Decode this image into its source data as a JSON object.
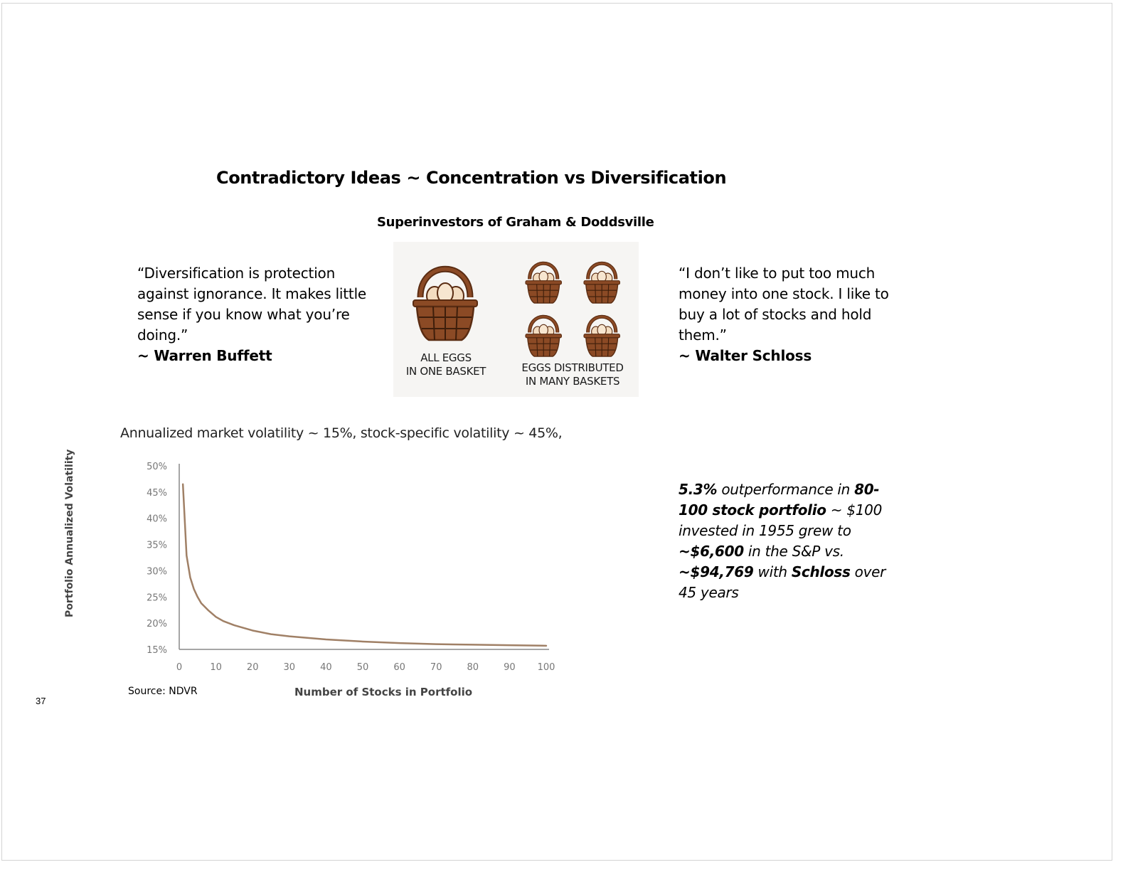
{
  "slide": {
    "title": "Contradictory Ideas ~ Concentration vs Diversification",
    "subtitle": "Superinvestors of Graham & Doddsville",
    "page_number": "37"
  },
  "quotes": {
    "left": {
      "text": "“Diversification is protection against ignorance. It makes little sense if you know what you’re doing.”",
      "author": "~ Warren Buffett"
    },
    "right": {
      "text": "“I don’t like to put too much money into one stock. I like to buy a lot of stocks and hold them.”",
      "author": "~ Walter Schloss"
    }
  },
  "illustration": {
    "left_label_line1": "ALL EGGS",
    "left_label_line2": "IN ONE BASKET",
    "right_label_line1": "EGGS DISTRIBUTED",
    "right_label_line2": "IN MANY BASKETS",
    "icon": "egg-basket-icon",
    "colors": {
      "basket": "#8b4a25",
      "basket_dark": "#5a2c12",
      "egg": "#f3dcc0"
    }
  },
  "volatility_note": "Annualized market volatility ~ 15%, stock-specific volatility ~ 45%,",
  "source": "Source: NDVR",
  "outperformance": {
    "p1_bold": "5.3%",
    "p2": " outperformance in ",
    "p3_bold": "80-100 stock portfolio",
    "p4": " ~ $100 invested in 1955 grew to ",
    "p5_bold": "~$6,600",
    "p6": " in the S&P vs. ",
    "p7_bold": "~$94,769",
    "p8": " with ",
    "p9_bold": "Schloss",
    "p10": " over 45 years"
  },
  "chart_data": {
    "type": "line",
    "xlabel": "Number of Stocks in Portfolio",
    "ylabel": "Portfolio Annualized Volatility",
    "xlim": [
      0,
      100
    ],
    "ylim": [
      15,
      50
    ],
    "x_ticks": [
      "0",
      "10",
      "20",
      "30",
      "40",
      "50",
      "60",
      "70",
      "80",
      "90",
      "100"
    ],
    "y_ticks": [
      "50%",
      "45%",
      "40%",
      "35%",
      "30%",
      "25%",
      "20%",
      "15%"
    ],
    "series_color": "#a08066",
    "series": [
      {
        "x": [
          1,
          2,
          3,
          4,
          5,
          6,
          8,
          10,
          12,
          15,
          20,
          25,
          30,
          40,
          50,
          60,
          70,
          80,
          90,
          100
        ],
        "y": [
          46.5,
          32.9,
          28.7,
          26.5,
          25.0,
          23.8,
          22.4,
          21.2,
          20.4,
          19.6,
          18.6,
          17.9,
          17.5,
          16.9,
          16.5,
          16.2,
          16.0,
          15.9,
          15.8,
          15.7
        ]
      }
    ]
  }
}
